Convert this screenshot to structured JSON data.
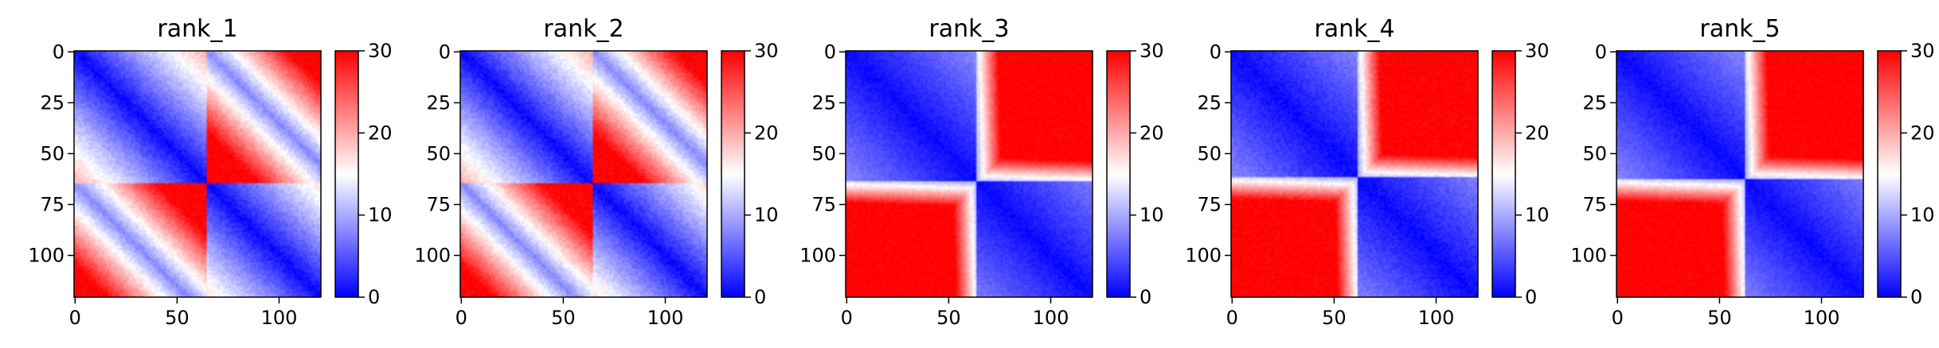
{
  "chart_data": [
    {
      "type": "heatmap",
      "title": "rank_1",
      "size": 121,
      "xticks": [
        0,
        50,
        100
      ],
      "yticks": [
        0,
        25,
        50,
        75,
        100
      ],
      "colorbar": {
        "colormap": "bwr",
        "vmin": 0,
        "vmax": 30,
        "ticks": [
          0,
          10,
          20,
          30
        ]
      },
      "pattern": {
        "block_split": 65,
        "style": "diagonal",
        "noise": 0.35
      }
    },
    {
      "type": "heatmap",
      "title": "rank_2",
      "size": 121,
      "xticks": [
        0,
        50,
        100
      ],
      "yticks": [
        0,
        25,
        50,
        75,
        100
      ],
      "colorbar": {
        "colormap": "bwr",
        "vmin": 0,
        "vmax": 30,
        "ticks": [
          0,
          10,
          20,
          30
        ]
      },
      "pattern": {
        "block_split": 65,
        "style": "diagonal",
        "noise": 0.35
      }
    },
    {
      "type": "heatmap",
      "title": "rank_3",
      "size": 121,
      "xticks": [
        0,
        50,
        100
      ],
      "yticks": [
        0,
        25,
        50,
        75,
        100
      ],
      "colorbar": {
        "colormap": "bwr",
        "vmin": 0,
        "vmax": 30,
        "ticks": [
          0,
          10,
          20,
          30
        ]
      },
      "pattern": {
        "block_split": 64,
        "style": "block",
        "noise": 0.25
      }
    },
    {
      "type": "heatmap",
      "title": "rank_4",
      "size": 121,
      "xticks": [
        0,
        50,
        100
      ],
      "yticks": [
        0,
        25,
        50,
        75,
        100
      ],
      "colorbar": {
        "colormap": "bwr",
        "vmin": 0,
        "vmax": 30,
        "ticks": [
          0,
          10,
          20,
          30
        ]
      },
      "pattern": {
        "block_split": 62,
        "style": "block",
        "noise": 0.3
      }
    },
    {
      "type": "heatmap",
      "title": "rank_5",
      "size": 121,
      "xticks": [
        0,
        50,
        100
      ],
      "yticks": [
        0,
        25,
        50,
        75,
        100
      ],
      "colorbar": {
        "colormap": "bwr",
        "vmin": 0,
        "vmax": 30,
        "ticks": [
          0,
          10,
          20,
          30
        ]
      },
      "pattern": {
        "block_split": 63,
        "style": "block",
        "noise": 0.25
      }
    }
  ]
}
